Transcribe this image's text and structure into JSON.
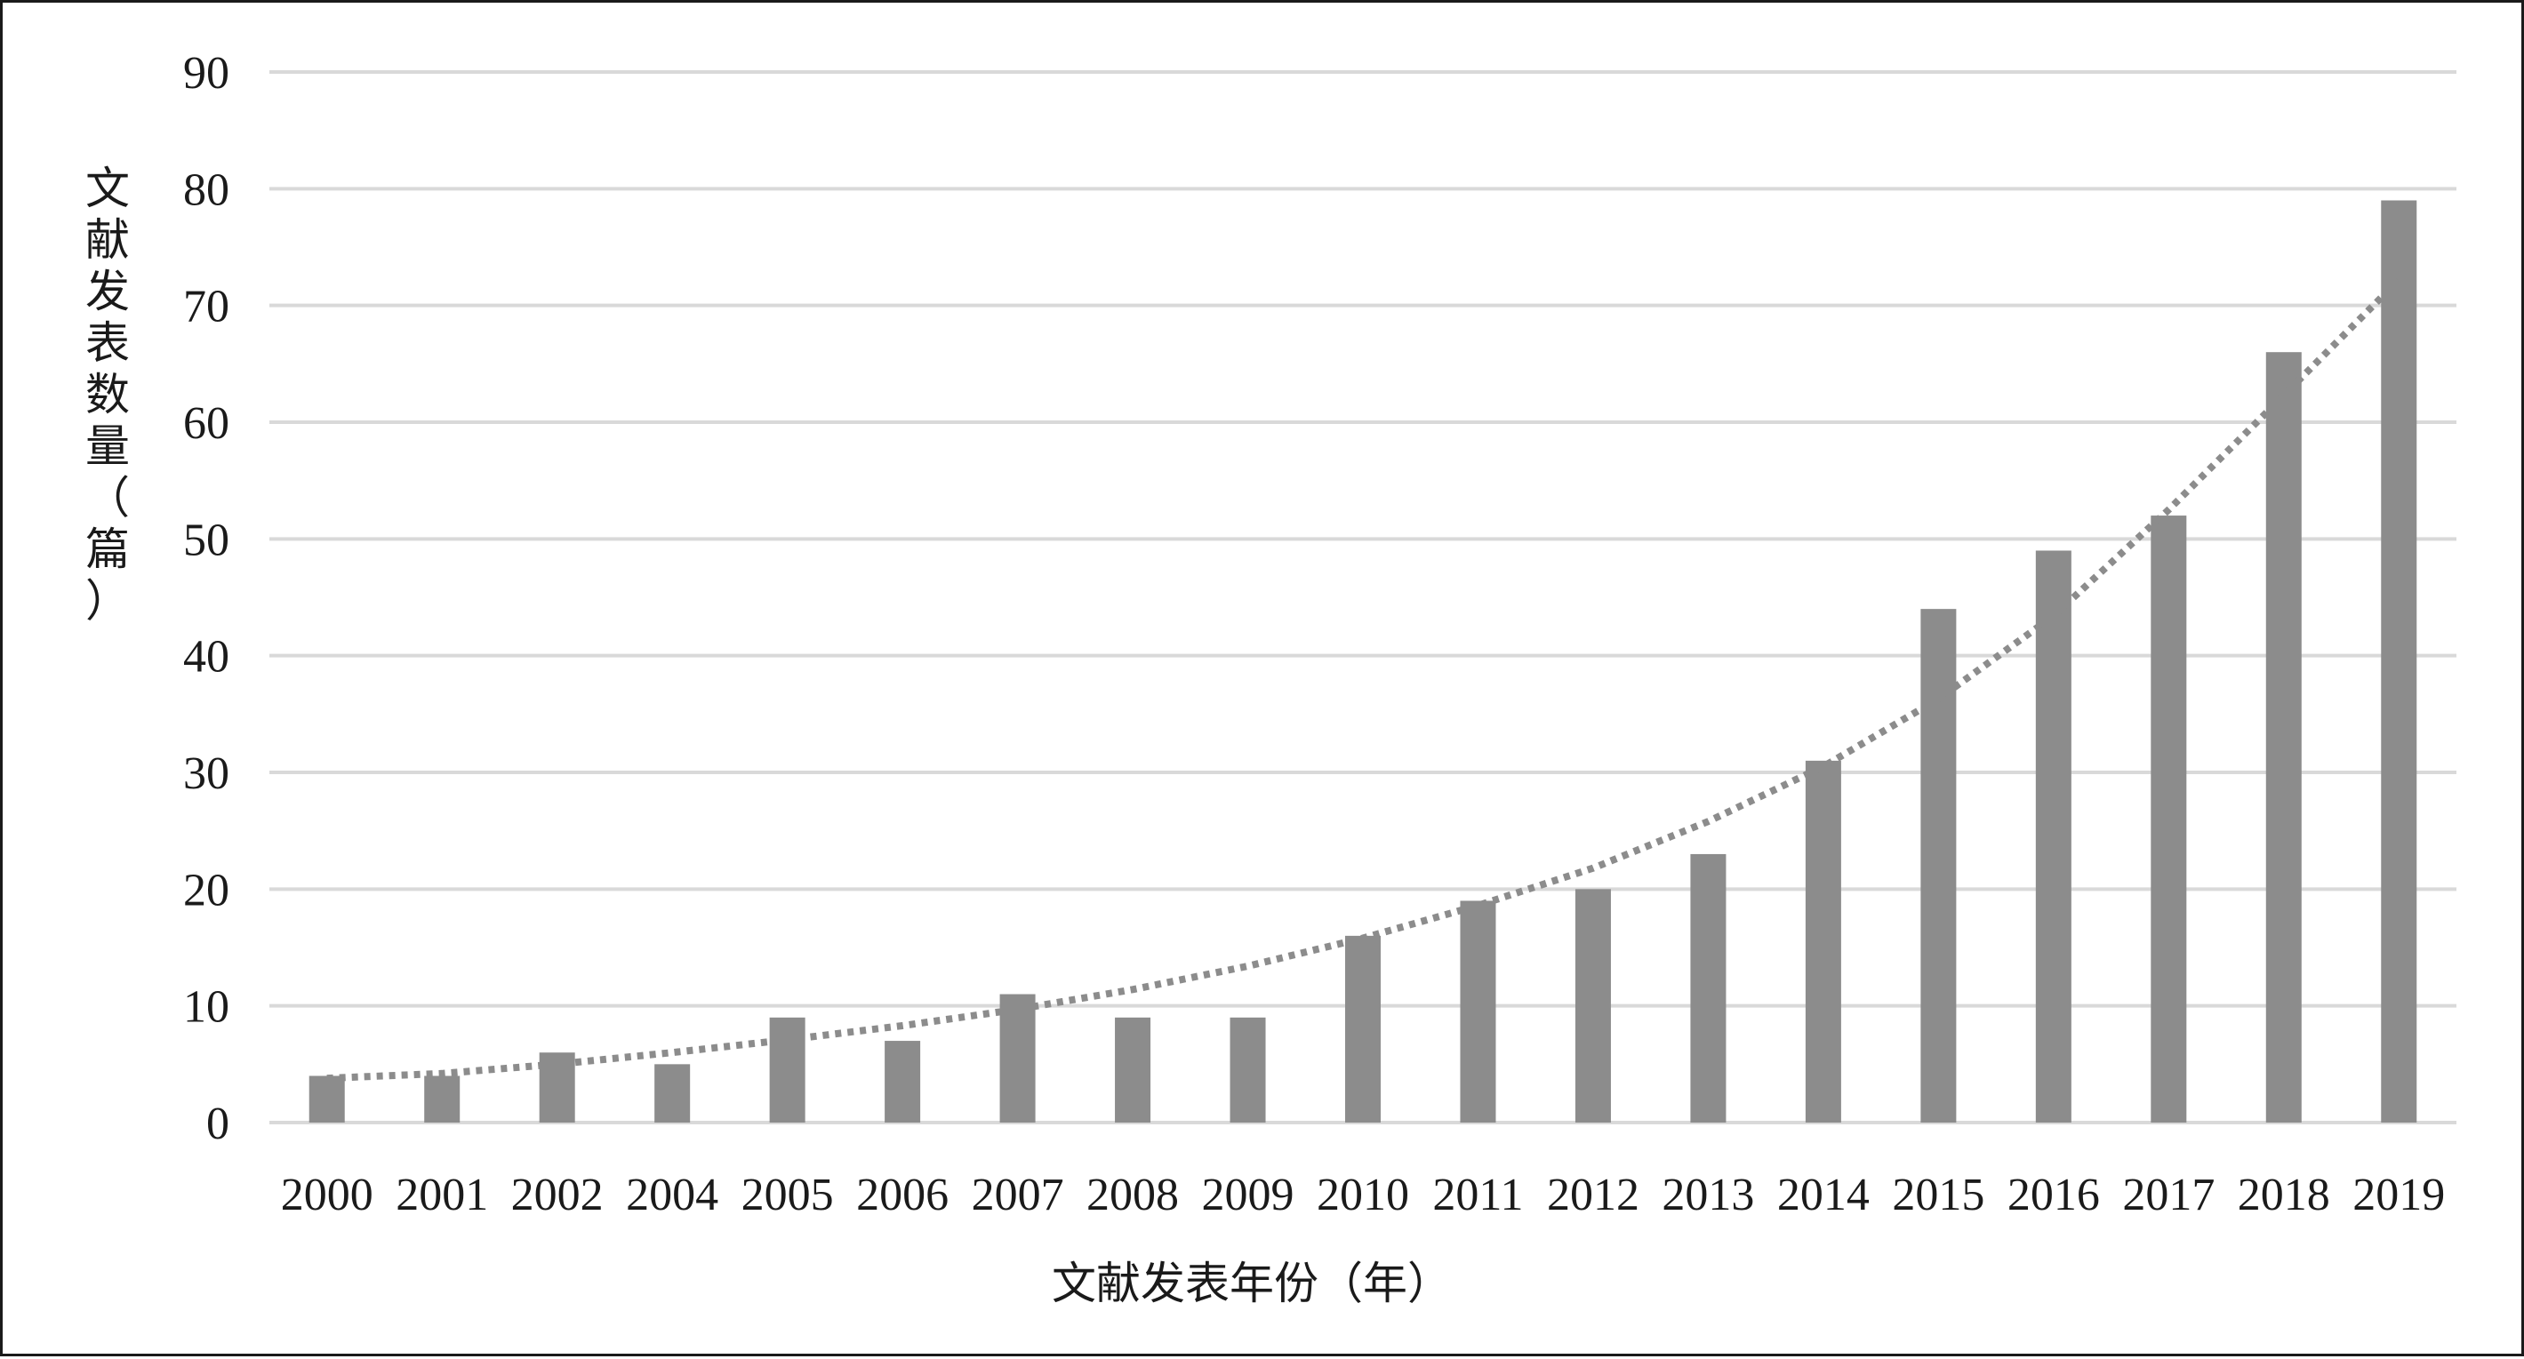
{
  "chart_data": {
    "type": "bar",
    "categories": [
      "2000",
      "2001",
      "2002",
      "2004",
      "2005",
      "2006",
      "2007",
      "2008",
      "2009",
      "2010",
      "2011",
      "2012",
      "2013",
      "2014",
      "2015",
      "2016",
      "2017",
      "2018",
      "2019"
    ],
    "values": [
      4,
      4,
      6,
      5,
      9,
      7,
      11,
      9,
      9,
      16,
      19,
      20,
      23,
      31,
      44,
      49,
      52,
      66,
      79
    ],
    "trendline": {
      "type": "polynomial",
      "style": "dotted",
      "values": [
        3.8,
        4.2,
        5.0,
        6.0,
        7.1,
        8.3,
        9.7,
        11.4,
        13.4,
        15.8,
        18.6,
        21.8,
        25.8,
        30.5,
        36.3,
        43.4,
        52.5,
        62.3,
        72.2
      ]
    },
    "xlabel": "文献发表年份（年）",
    "ylabel": "文献发表数量（篇）",
    "yticks": [
      0,
      10,
      20,
      30,
      40,
      50,
      60,
      70,
      80,
      90
    ],
    "ylim": [
      0,
      90
    ],
    "grid": true,
    "legend": "none",
    "colors": {
      "bar": "#8c8c8c",
      "trendline": "#8c8c8c",
      "grid": "#d9d9d9",
      "text": "#1a1a1a"
    }
  }
}
